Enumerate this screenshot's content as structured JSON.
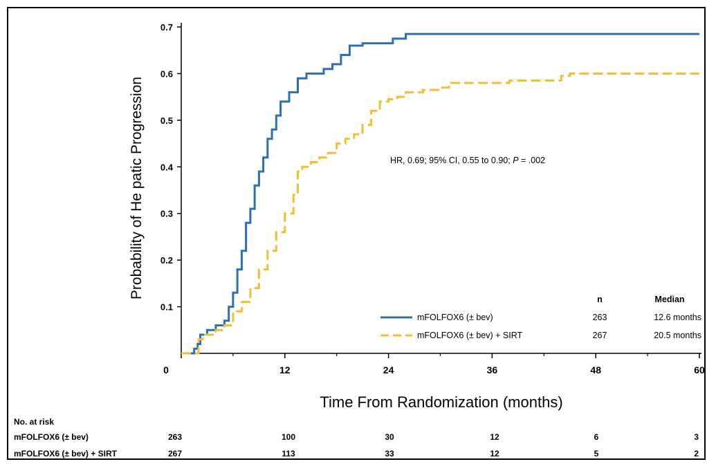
{
  "chart_data": {
    "type": "line",
    "ylabel": "Probability of  He patic Progression",
    "xlabel": "Time From Randomization (months)",
    "xlim": [
      0,
      60
    ],
    "ylim": [
      0,
      0.7
    ],
    "xticks": [
      0,
      12,
      24,
      36,
      48,
      60
    ],
    "xtick_labels": [
      "0",
      "12",
      "24",
      "36",
      "48",
      "60"
    ],
    "yticks": [
      0.1,
      0.2,
      0.3,
      0.4,
      0.5,
      0.6,
      0.7
    ],
    "ytick_labels": [
      "0.1",
      "0.2",
      "0.3",
      "0.4",
      "0.5",
      "0.6",
      "0.7"
    ],
    "grid": false,
    "annotation": {
      "text": "HR, 0.69; 95% CI, 0.55 to 0.90;",
      "p_label": "P",
      "p_value": " = .002"
    },
    "legend": {
      "position": "bottom-right",
      "n_header": "n",
      "median_header": "Median"
    },
    "series": [
      {
        "name": "mFOLFOX6 (± bev)",
        "n": "263",
        "median": "12.6 months",
        "color": "#2b6fb8",
        "dash": "solid",
        "points": [
          [
            0,
            0
          ],
          [
            1.2,
            0
          ],
          [
            1.5,
            0.01
          ],
          [
            1.9,
            0.02
          ],
          [
            2.2,
            0.04
          ],
          [
            3,
            0.05
          ],
          [
            4,
            0.06
          ],
          [
            5,
            0.07
          ],
          [
            5.5,
            0.1
          ],
          [
            6,
            0.13
          ],
          [
            6.5,
            0.18
          ],
          [
            7,
            0.22
          ],
          [
            7.5,
            0.28
          ],
          [
            8,
            0.31
          ],
          [
            8.5,
            0.36
          ],
          [
            9,
            0.39
          ],
          [
            9.5,
            0.42
          ],
          [
            10,
            0.46
          ],
          [
            10.5,
            0.48
          ],
          [
            11,
            0.51
          ],
          [
            11.5,
            0.54
          ],
          [
            12.5,
            0.56
          ],
          [
            13.5,
            0.59
          ],
          [
            14.5,
            0.6
          ],
          [
            15.5,
            0.6
          ],
          [
            16.5,
            0.61
          ],
          [
            17.5,
            0.62
          ],
          [
            18.5,
            0.64
          ],
          [
            19.5,
            0.66
          ],
          [
            21,
            0.665
          ],
          [
            23,
            0.665
          ],
          [
            24.5,
            0.675
          ],
          [
            26,
            0.685
          ],
          [
            60,
            0.685
          ]
        ]
      },
      {
        "name": "mFOLFOX6 (± bev) + SIRT",
        "n": "267",
        "median": "20.5 months",
        "color": "#f0c030",
        "dash": "dashed",
        "points": [
          [
            0,
            0
          ],
          [
            1.5,
            0
          ],
          [
            2,
            0.03
          ],
          [
            2.5,
            0.04
          ],
          [
            4,
            0.05
          ],
          [
            5,
            0.06
          ],
          [
            6,
            0.09
          ],
          [
            7,
            0.11
          ],
          [
            8,
            0.14
          ],
          [
            9,
            0.18
          ],
          [
            10,
            0.22
          ],
          [
            11,
            0.26
          ],
          [
            12,
            0.3
          ],
          [
            13,
            0.34
          ],
          [
            13.5,
            0.39
          ],
          [
            14,
            0.4
          ],
          [
            15,
            0.41
          ],
          [
            16,
            0.42
          ],
          [
            17,
            0.43
          ],
          [
            18,
            0.45
          ],
          [
            19,
            0.46
          ],
          [
            20,
            0.47
          ],
          [
            21,
            0.49
          ],
          [
            22,
            0.52
          ],
          [
            23,
            0.54
          ],
          [
            24,
            0.545
          ],
          [
            25,
            0.55
          ],
          [
            26,
            0.56
          ],
          [
            28,
            0.565
          ],
          [
            30,
            0.57
          ],
          [
            31,
            0.58
          ],
          [
            34,
            0.58
          ],
          [
            38,
            0.585
          ],
          [
            44,
            0.595
          ],
          [
            45,
            0.6
          ],
          [
            60,
            0.6
          ]
        ]
      }
    ]
  },
  "risk_table": {
    "title": "No. at risk",
    "rows": [
      {
        "label": "mFOLFOX6 (± bev)",
        "values": [
          "263",
          "100",
          "30",
          "12",
          "6",
          "3"
        ]
      },
      {
        "label": "mFOLFOX6 (± bev) + SIRT",
        "values": [
          "267",
          "113",
          "33",
          "12",
          "5",
          "2"
        ]
      }
    ]
  }
}
